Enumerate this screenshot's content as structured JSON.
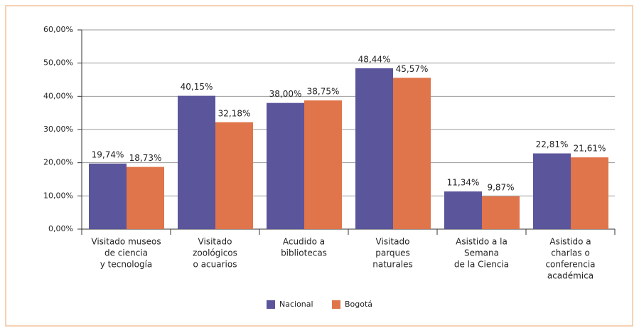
{
  "chart_data": {
    "type": "bar",
    "categories": [
      [
        "Visitado museos",
        "de ciencia",
        "y tecnología"
      ],
      [
        "Visitado",
        "zoológicos",
        "o acuarios"
      ],
      [
        "Acudido a",
        "bibliotecas"
      ],
      [
        "Visitado",
        "parques",
        "naturales"
      ],
      [
        "Asistido a la",
        "Semana",
        "de la Ciencia"
      ],
      [
        "Asistido a",
        "charlas o",
        "conferencia",
        "académica"
      ]
    ],
    "series": [
      {
        "name": "Nacional",
        "color": "#5b559c",
        "values": [
          19.74,
          40.15,
          38.0,
          48.44,
          11.34,
          22.81
        ],
        "value_labels": [
          "19,74%",
          "40,15%",
          "38,00%",
          "48,44%",
          "11,34%",
          "22,81%"
        ]
      },
      {
        "name": "Bogotá",
        "color": "#e0744a",
        "values": [
          18.73,
          32.18,
          38.75,
          45.57,
          9.87,
          21.61
        ],
        "value_labels": [
          "18,73%",
          "32,18%",
          "38,75%",
          "45,57%",
          "9,87%",
          "21,61%"
        ]
      }
    ],
    "ylim": [
      0,
      60
    ],
    "yticks": [
      {
        "value": 0,
        "label": "0,00%"
      },
      {
        "value": 10,
        "label": "10,00%"
      },
      {
        "value": 20,
        "label": "20,00%"
      },
      {
        "value": 30,
        "label": "30,00%"
      },
      {
        "value": 40,
        "label": "40,00%"
      },
      {
        "value": 50,
        "label": "50,00%"
      },
      {
        "value": 60,
        "label": "60,00%"
      }
    ],
    "grid": true,
    "legend": "bottom"
  }
}
